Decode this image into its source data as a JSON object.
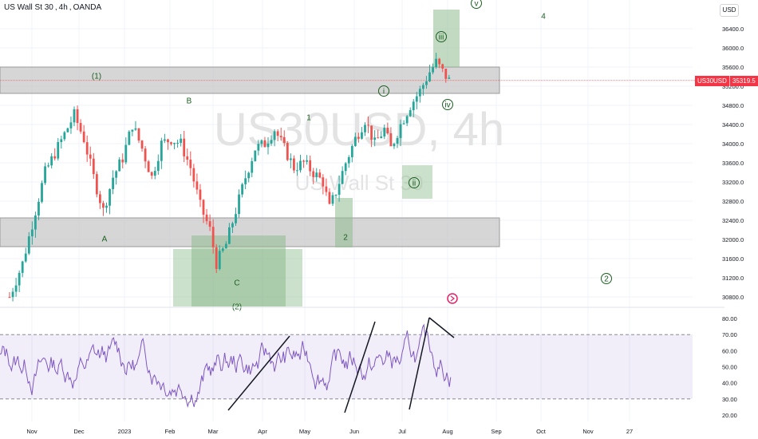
{
  "header": {
    "symbol": "US Wall St 30",
    "timeframe": "4h",
    "source": "OANDA",
    "sep1": ",",
    "sep2": ","
  },
  "currency_button": "USD",
  "watermark": {
    "ticker": "US30USD",
    "interval": "4h",
    "name": "US Wall St 30"
  },
  "last_price": {
    "symbol": "US30USD",
    "value": "35319.5"
  },
  "colors": {
    "up": "#26a69a",
    "down": "#ef5350",
    "rsi": "#7e57c2",
    "zone_gray": "#c8c8c8",
    "zone_green": "#8fbc8f",
    "price_line": "#f23645",
    "wave_text": "#1b5e20"
  },
  "annotations": {
    "wave_labels": [
      "(1)",
      "A",
      "B",
      "C",
      "(2)",
      "1",
      "2",
      "i",
      "ii",
      "iii",
      "iv",
      "v",
      "4",
      "2"
    ],
    "icons": [
      "events-icon"
    ]
  },
  "chart_data": [
    {
      "type": "line",
      "title": "",
      "series": [
        {
          "name": "",
          "values": [
            [
              0,
              30800
            ],
            [
              4,
              31500
            ],
            [
              8,
              32600
            ],
            [
              11,
              33400
            ],
            [
              14,
              33800
            ],
            [
              17,
              34200
            ],
            [
              20,
              34600
            ],
            [
              23,
              34100
            ],
            [
              26,
              33300
            ],
            [
              29,
              32600
            ],
            [
              32,
              33300
            ],
            [
              35,
              33700
            ],
            [
              38,
              34400
            ],
            [
              41,
              33900
            ],
            [
              44,
              33300
            ],
            [
              47,
              34000
            ],
            [
              50,
              34100
            ],
            [
              53,
              34000
            ],
            [
              56,
              33500
            ],
            [
              59,
              32700
            ],
            [
              62,
              32200
            ],
            [
              64,
              31500
            ],
            [
              67,
              31900
            ],
            [
              70,
              32600
            ],
            [
              73,
              33300
            ],
            [
              76,
              33900
            ],
            [
              79,
              34000
            ],
            [
              82,
              34300
            ],
            [
              85,
              33900
            ],
            [
              88,
              33500
            ],
            [
              91,
              33600
            ],
            [
              94,
              33400
            ],
            [
              97,
              33200
            ],
            [
              99,
              32650
            ],
            [
              101,
              33000
            ],
            [
              104,
              33600
            ],
            [
              107,
              34100
            ],
            [
              110,
              34500
            ],
            [
              113,
              34000
            ],
            [
              116,
              34300
            ],
            [
              118,
              33900
            ],
            [
              121,
              34400
            ],
            [
              124,
              34800
            ],
            [
              127,
              35100
            ],
            [
              130,
              35500
            ],
            [
              132,
              35700
            ],
            [
              134,
              35500
            ],
            [
              136,
              35320
            ]
          ]
        }
      ],
      "x_ticks": [
        "Nov",
        "Dec",
        "2023",
        "Feb",
        "Mar",
        "Apr",
        "May",
        "Jun",
        "Jul",
        "Aug",
        "Sep",
        "Oct",
        "Nov",
        "27"
      ],
      "y_ticks": [
        "36400.0",
        "36000.0",
        "35600.0",
        "35200.0",
        "34800.0",
        "34400.0",
        "34000.0",
        "33600.0",
        "33200.0",
        "32800.0",
        "32400.0",
        "32000.0",
        "31600.0",
        "31200.0",
        "30800.0"
      ],
      "ylim": [
        30400,
        36800
      ],
      "last_value": 35319.5,
      "zones_gray": [
        [
          35050,
          35600
        ],
        [
          31850,
          32450
        ]
      ],
      "grid": true
    },
    {
      "type": "line",
      "series": [
        {
          "name": "",
          "values": []
        }
      ],
      "y_ticks": [
        "80.00",
        "70.00",
        "60.00",
        "50.00",
        "40.00",
        "30.00",
        "20.00"
      ],
      "ylim": [
        15,
        85
      ],
      "bands": [
        30,
        70
      ],
      "grid": true
    }
  ]
}
